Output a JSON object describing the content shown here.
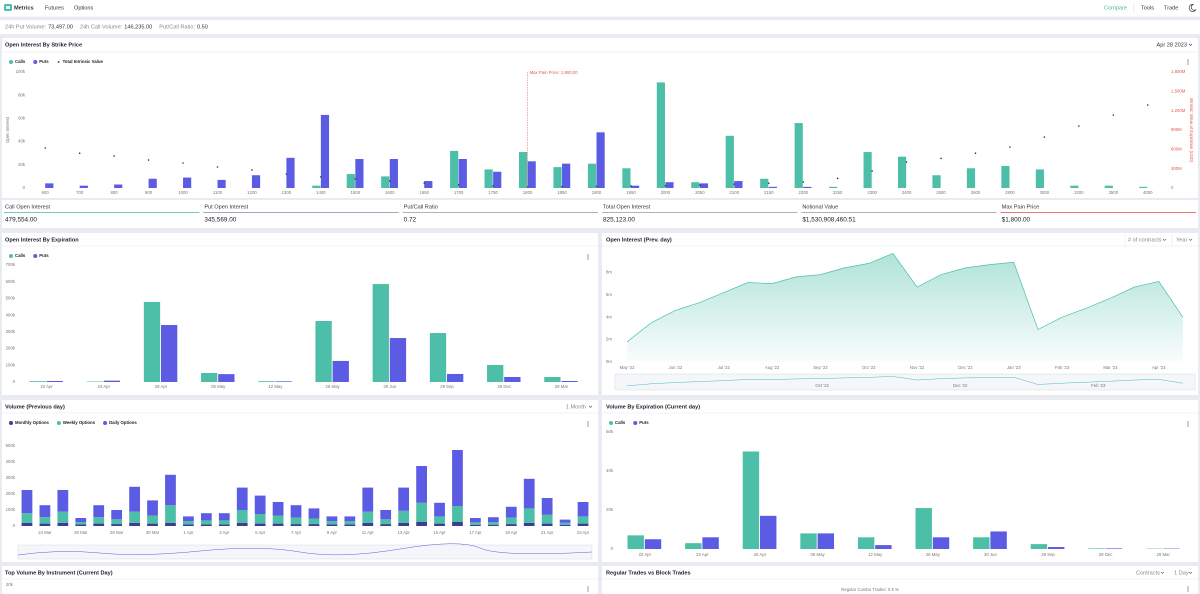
{
  "nav": {
    "brand": "Metrics",
    "links": [
      "Futures",
      "Options"
    ],
    "right": [
      "Compare",
      "Tools",
      "Trade"
    ]
  },
  "stats": [
    {
      "label": "24h Put Volume:",
      "value": "73,497.00"
    },
    {
      "label": "24h Call Volume:",
      "value": "146,235.00"
    },
    {
      "label": "Put/Call Ratio:",
      "value": "0.50"
    }
  ],
  "panel1_date": "Apr 28 2023",
  "summary": [
    {
      "label": "Call Open Interest",
      "value": "479,554.00",
      "color": "#4dbfa8"
    },
    {
      "label": "Put Open Interest",
      "value": "345,569.00",
      "color": "#8a93b0"
    },
    {
      "label": "Put/Call Ratio",
      "value": "0.72",
      "color": "#9aa0a8"
    },
    {
      "label": "Total Open Interest",
      "value": "825,123.00",
      "color": "#9aa0a8"
    },
    {
      "label": "Notional Value",
      "value": "$1,530,908,460.51",
      "color": "#9aa0a8"
    },
    {
      "label": "Max Pain Price",
      "value": "$1,800.00",
      "color": "#e0584f"
    }
  ],
  "chart_data": [
    {
      "type": "bar",
      "title": "Open Interest By Strike Price",
      "y_label": "Open Interest",
      "y2_label": "Intrinsic Value at Expiration (USD)",
      "categories": [
        "600",
        "700",
        "800",
        "900",
        "1000",
        "1100",
        "1200",
        "1300",
        "1400",
        "1500",
        "1600",
        "1650",
        "1700",
        "1750",
        "1800",
        "1850",
        "1900",
        "1950",
        "2000",
        "2050",
        "2100",
        "2150",
        "2200",
        "2250",
        "2300",
        "2400",
        "2500",
        "2600",
        "2800",
        "3000",
        "3200",
        "3500",
        "4000"
      ],
      "series": [
        {
          "name": "Calls",
          "color": "#4dbfa8",
          "values": [
            0,
            0,
            0,
            0,
            0,
            0,
            0,
            0,
            2000,
            12000,
            10000,
            0,
            32000,
            16000,
            31000,
            18000,
            21000,
            17000,
            91000,
            5000,
            45000,
            8000,
            56000,
            1000,
            31000,
            27000,
            11000,
            17000,
            19000,
            16000,
            2000,
            2000,
            1000
          ]
        },
        {
          "name": "Puts",
          "color": "#5b5be3",
          "values": [
            4000,
            2000,
            3000,
            8000,
            9000,
            7000,
            11000,
            26000,
            63000,
            25000,
            25000,
            6000,
            25000,
            14000,
            23000,
            21000,
            48000,
            2000,
            5000,
            4000,
            6000,
            1000,
            1000,
            0,
            0,
            0,
            0,
            0,
            0,
            0,
            0,
            0,
            0
          ]
        },
        {
          "name": "Total Intrinsic Value",
          "color": "#333333",
          "mark": "dot",
          "axis": "y2",
          "values": [
            620000000,
            540000000,
            496000000,
            434000000,
            388000000,
            326000000,
            280000000,
            217000000,
            171000000,
            140000000,
            109000000,
            78000000,
            47000000,
            31000000,
            15000000,
            20000000,
            25000000,
            30000000,
            35000000,
            45000000,
            60000000,
            75000000,
            93000000,
            150000000,
            264000000,
            403000000,
            460000000,
            540000000,
            636000000,
            791000000,
            962000000,
            1132000000,
            1288000000
          ]
        }
      ],
      "annotations": [
        {
          "text": "Max Pain Price: 1,800.00",
          "x": "1800",
          "color": "#e0584f"
        }
      ],
      "ylim": [
        0,
        100000
      ],
      "yticks": [
        0,
        {
          "value": 20000,
          "label": "20k"
        },
        {
          "value": 40000,
          "label": "40k"
        },
        {
          "value": 60000,
          "label": "60k"
        },
        {
          "value": 80000,
          "label": "80k"
        },
        {
          "value": 100000,
          "label": "100k"
        }
      ],
      "y2lim": [
        0,
        1800000000
      ],
      "y2ticks": [
        0,
        {
          "value": 300000000,
          "label": "300M"
        },
        {
          "value": 600000000,
          "label": "600M"
        },
        {
          "value": 900000000,
          "label": "900M"
        },
        {
          "value": 1200000000,
          "label": "1,200M"
        },
        {
          "value": 1500000000,
          "label": "1,500M"
        },
        {
          "value": 1800000000,
          "label": "1,800M"
        }
      ],
      "grid": false
    },
    {
      "type": "bar",
      "title": "Open Interest By Expiration",
      "categories": [
        "22 Apr",
        "23 Apr",
        "28 Apr",
        "05 May",
        "12 May",
        "26 May",
        "30 Jun",
        "29 Sep",
        "29 Dec",
        "29 Mar"
      ],
      "series": [
        {
          "name": "Calls",
          "color": "#4dbfa8",
          "values": [
            5000,
            3000,
            479000,
            54000,
            5000,
            365000,
            586000,
            293000,
            102000,
            30000
          ]
        },
        {
          "name": "Puts",
          "color": "#5b5be3",
          "values": [
            6000,
            8000,
            341000,
            47000,
            4000,
            126000,
            263000,
            48000,
            30000,
            6000
          ]
        }
      ],
      "ylim": [
        0,
        700000
      ],
      "yticks": [
        0,
        {
          "value": 100000,
          "label": "100k"
        },
        {
          "value": 200000,
          "label": "200k"
        },
        {
          "value": 300000,
          "label": "300k"
        },
        {
          "value": 400000,
          "label": "400k"
        },
        {
          "value": 500000,
          "label": "500k"
        },
        {
          "value": 600000,
          "label": "600k"
        },
        {
          "value": 700000,
          "label": "700k"
        }
      ],
      "grid": false
    },
    {
      "type": "area",
      "title": "Open Interest (Prev. day)",
      "controls": [
        "# of contracts",
        "Year"
      ],
      "categories": [
        "May '22",
        null,
        "Jun '22",
        null,
        "Jul '22",
        null,
        "Aug '22",
        null,
        "Sep '22",
        null,
        "Oct '22",
        null,
        "Nov '22",
        null,
        "Dec '22",
        null,
        "Jan '23",
        null,
        "Feb '23",
        null,
        "Mar '23",
        null,
        "Apr '23",
        null
      ],
      "series": [
        {
          "name": "Open Interest",
          "color": "#4dbfa8",
          "values": [
            1800000,
            3500000,
            4600000,
            5300000,
            6200000,
            7100000,
            7000000,
            7600000,
            7800000,
            8400000,
            8800000,
            9700000,
            6700000,
            7800000,
            8400000,
            8700000,
            8900000,
            2900000,
            4000000,
            4800000,
            5700000,
            6700000,
            7200000,
            4000000
          ]
        }
      ],
      "navigator_labels": [
        "Oct '22",
        "Dec '22",
        "Feb '23"
      ],
      "ylim": [
        0,
        10000000
      ],
      "yticks": [
        {
          "value": 0,
          "label": "0m"
        },
        {
          "value": 2000000,
          "label": "2m"
        },
        {
          "value": 4000000,
          "label": "4m"
        },
        {
          "value": 6000000,
          "label": "6m"
        },
        {
          "value": 8000000,
          "label": "8m"
        }
      ],
      "grid": false
    },
    {
      "type": "bar",
      "stacked": true,
      "title": "Volume (Previous day)",
      "controls": [
        "1 Month"
      ],
      "categories": [
        null,
        "24 Mar",
        null,
        "26 Mar",
        null,
        "28 Mar",
        null,
        "30 Mar",
        null,
        "1 Apr",
        null,
        "3 Apr",
        null,
        "5 Apr",
        null,
        "7 Apr",
        null,
        "9 Apr",
        null,
        "11 Apr",
        null,
        "13 Apr",
        null,
        "15 Apr",
        null,
        "17 Apr",
        null,
        "19 Apr",
        null,
        "21 Apr",
        null,
        "23 Apr"
      ],
      "series": [
        {
          "name": "Monthly Options",
          "color": "#3b3f94",
          "values": [
            20000,
            15000,
            20000,
            10000,
            15000,
            12000,
            20000,
            15000,
            20000,
            10000,
            10000,
            10000,
            20000,
            15000,
            15000,
            12000,
            12000,
            10000,
            10000,
            20000,
            12000,
            20000,
            25000,
            15000,
            25000,
            8000,
            8000,
            12000,
            20000,
            15000,
            8000,
            15000
          ]
        },
        {
          "name": "Weekly Options",
          "color": "#4dbfa8",
          "values": [
            60000,
            40000,
            70000,
            15000,
            40000,
            30000,
            70000,
            50000,
            110000,
            20000,
            25000,
            25000,
            80000,
            60000,
            50000,
            40000,
            35000,
            20000,
            20000,
            70000,
            30000,
            75000,
            120000,
            45000,
            100000,
            15000,
            17000,
            40000,
            90000,
            55000,
            12000,
            45000
          ]
        },
        {
          "name": "Daily Options",
          "color": "#5b5be3",
          "values": [
            145000,
            75000,
            135000,
            25000,
            75000,
            58000,
            155000,
            95000,
            190000,
            30000,
            45000,
            45000,
            140000,
            115000,
            85000,
            78000,
            63000,
            30000,
            30000,
            150000,
            58000,
            145000,
            230000,
            85000,
            350000,
            27000,
            30000,
            68000,
            185000,
            105000,
            20000,
            90000
          ]
        }
      ],
      "ylim": [
        0,
        550000
      ],
      "yticks": [
        0,
        {
          "value": 100000,
          "label": "100k"
        },
        {
          "value": 200000,
          "label": "200k"
        },
        {
          "value": 300000,
          "label": "300k"
        },
        {
          "value": 400000,
          "label": "400k"
        },
        {
          "value": 500000,
          "label": "500k"
        }
      ],
      "grid": false
    },
    {
      "type": "bar",
      "title": "Volume By Expiration (Current day)",
      "categories": [
        "22 Apr",
        "23 Apr",
        "28 Apr",
        "05 May",
        "12 May",
        "26 May",
        "30 Jun",
        "29 Sep",
        "29 Dec",
        "29 Mar"
      ],
      "series": [
        {
          "name": "Calls",
          "color": "#4dbfa8",
          "values": [
            7000,
            3000,
            50000,
            8000,
            6000,
            21000,
            6000,
            2500,
            300,
            200
          ]
        },
        {
          "name": "Puts",
          "color": "#5b5be3",
          "values": [
            5000,
            6000,
            17000,
            8000,
            2000,
            6000,
            9000,
            1000,
            300,
            200
          ]
        }
      ],
      "ylim": [
        0,
        60000
      ],
      "yticks": [
        0,
        {
          "value": 20000,
          "label": "20k"
        },
        {
          "value": 40000,
          "label": "40k"
        },
        {
          "value": 60000,
          "label": "60k"
        }
      ],
      "grid": false
    }
  ],
  "bottom": {
    "left_title": "Top Volume By Instrument (Current Day)",
    "left_tick": "20k",
    "right_title": "Regular Trades vs Block Trades",
    "right_controls": [
      "Contracts",
      "1 Day"
    ],
    "right_note": "Regular Combo Trades: 0.5 %"
  }
}
